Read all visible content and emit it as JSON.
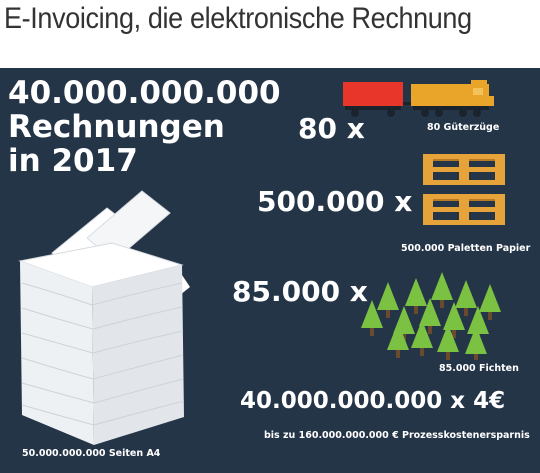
{
  "page": {
    "title": "E-Invoicing, die elektronische Rechnung"
  },
  "colors": {
    "panel_background": "#253548",
    "text": "#ffffff",
    "wagon_red": "#e8372a",
    "locomotive_orange": "#e9a42a",
    "pallet": "#e6a33a",
    "tree_green": "#7cc242",
    "trunk": "#6b4a2e"
  },
  "infographic": {
    "headline": {
      "line1": "40.000.000.000",
      "line2": "Rechnungen",
      "line3": "in 2017"
    },
    "paper": {
      "icon": "paper-stack-icon",
      "caption": "50.000.000.000 Seiten A4"
    },
    "trains": {
      "multiplier": "80 x",
      "icon": "freight-train-icon",
      "caption": "80 Güterzüge"
    },
    "pallets": {
      "multiplier": "500.000 x",
      "icon": "pallet-stack-icon",
      "caption": "500.000 Paletten Papier"
    },
    "trees": {
      "multiplier": "85.000 x",
      "icon": "fir-trees-icon",
      "caption": "85.000 Fichten"
    },
    "savings": {
      "formula": "40.000.000.000 x 4€",
      "caption": "bis zu 160.000.000.000 € Prozesskostenersparnis"
    }
  }
}
